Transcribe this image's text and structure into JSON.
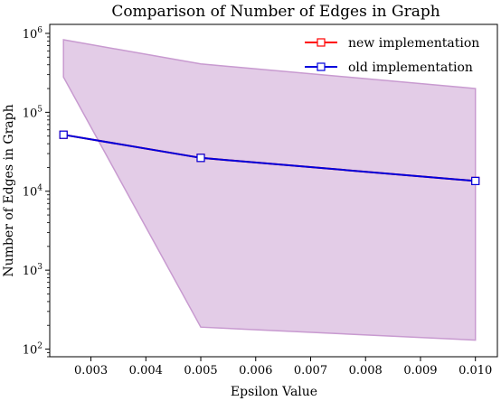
{
  "chart_data": {
    "type": "line",
    "title": "Comparison of Number of Edges in Graph",
    "xlabel": "Epsilon Value",
    "ylabel": "Number of Edges in Graph",
    "yscale": "log",
    "xlim": [
      0.00225,
      0.0104
    ],
    "ylim": [
      80,
      1300000
    ],
    "xticks": [
      0.003,
      0.004,
      0.005,
      0.006,
      0.007,
      0.008,
      0.009,
      0.01
    ],
    "xtick_labels": [
      "0.003",
      "0.004",
      "0.005",
      "0.006",
      "0.007",
      "0.008",
      "0.009",
      "0.010"
    ],
    "yticks": [
      100,
      1000,
      10000,
      100000,
      1000000
    ],
    "ytick_bases": [
      "10",
      "10",
      "10",
      "10",
      "10"
    ],
    "ytick_exps": [
      "2",
      "3",
      "4",
      "5",
      "6"
    ],
    "grid": false,
    "legend_position": "top-right",
    "series": [
      {
        "name": "new implementation",
        "color": "#ff0000",
        "marker": "square-open",
        "x": [
          0.0025,
          0.005,
          0.01
        ],
        "y": [
          52000,
          26500,
          13500
        ]
      },
      {
        "name": "old implementation",
        "color": "#0000dd",
        "marker": "square-open",
        "x": [
          0.0025,
          0.005,
          0.01
        ],
        "y": [
          52000,
          26500,
          13500
        ]
      }
    ],
    "band": {
      "color": "#c89ad0",
      "x": [
        0.0025,
        0.005,
        0.01
      ],
      "upper": [
        830000,
        410000,
        200000
      ],
      "lower": [
        280000,
        190,
        130
      ]
    }
  }
}
